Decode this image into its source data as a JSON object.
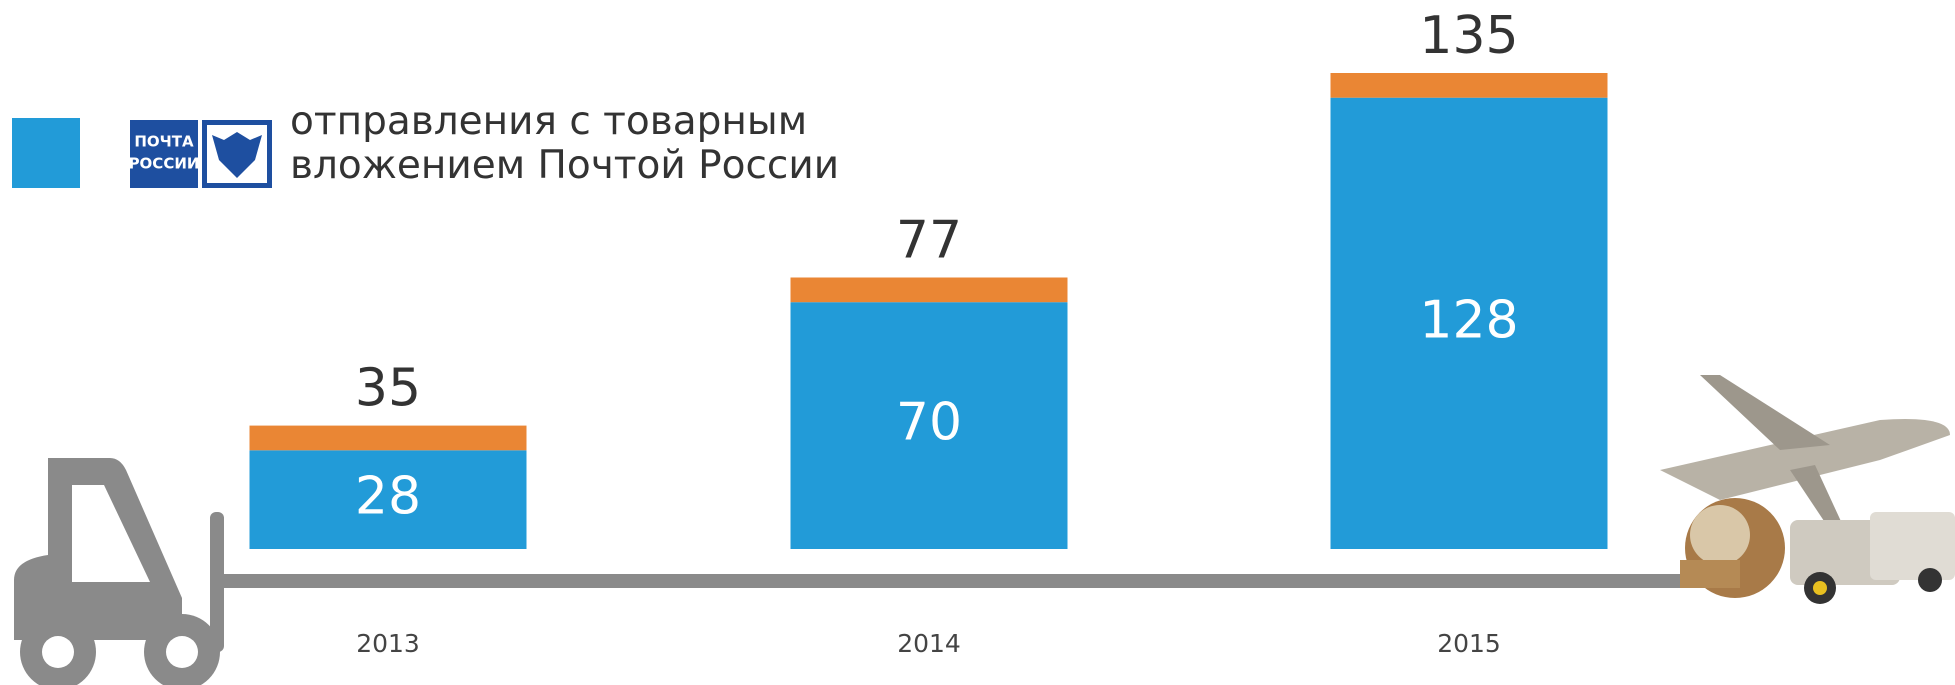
{
  "chart_data": {
    "type": "bar",
    "stacked": true,
    "categories": [
      "2013",
      "2014",
      "2015"
    ],
    "series": [
      {
        "name": "отправления с товарным вложением Почтой России",
        "color": "#229bd8",
        "values": [
          28,
          70,
          128
        ]
      },
      {
        "color": "#ea8634",
        "values": [
          7,
          7,
          7
        ]
      }
    ],
    "totals": [
      35,
      77,
      135
    ],
    "logo": [
      "ПОЧТА",
      "РОССИИ"
    ]
  }
}
